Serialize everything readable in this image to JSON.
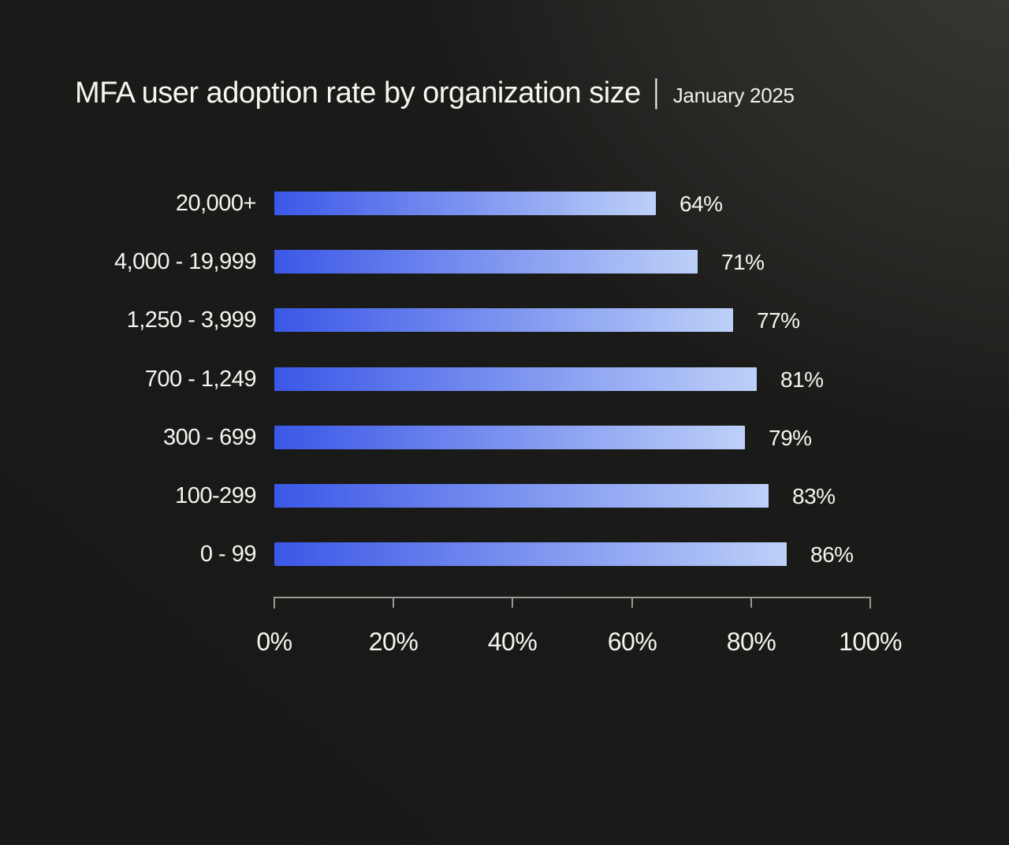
{
  "title": {
    "main": "MFA user adoption rate by organization size",
    "separator": "|",
    "subtitle": "January 2025"
  },
  "chart_data": {
    "type": "bar",
    "orientation": "horizontal",
    "title": "MFA user adoption rate by organization size",
    "subtitle": "January 2025",
    "categories": [
      "20,000+",
      "4,000 - 19,999",
      "1,250 - 3,999",
      "700 - 1,249",
      "300 - 699",
      "100-299",
      "0 - 99"
    ],
    "values": [
      64,
      71,
      77,
      81,
      79,
      83,
      86
    ],
    "value_labels": [
      "64%",
      "71%",
      "77%",
      "81%",
      "79%",
      "83%",
      "86%"
    ],
    "xlabel": "",
    "ylabel": "",
    "x_axis": {
      "range": [
        0,
        100
      ],
      "tick_values": [
        0,
        20,
        40,
        60,
        80,
        100
      ],
      "tick_labels": [
        "0%",
        "20%",
        "40%",
        "60%",
        "80%",
        "100%"
      ]
    },
    "grid": false,
    "legend": false,
    "colors": {
      "bar_gradient_start": "#3b57e7",
      "bar_gradient_end": "#bdd0f8",
      "background_dark": "#1a1a19",
      "background_highlight": "#3b3934",
      "text": "#f6f4f0",
      "axis": "#9b9894"
    }
  }
}
